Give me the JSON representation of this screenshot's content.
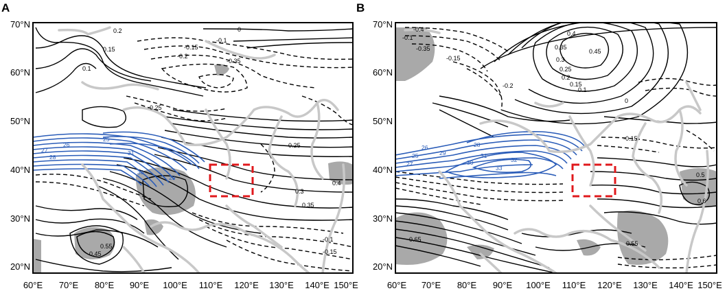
{
  "panels": [
    {
      "letter": "A",
      "lat_labels": [
        "70°N",
        "60°N",
        "50°N",
        "40°N",
        "30°N",
        "20°N"
      ],
      "lon_labels": [
        "60°E",
        "70°E",
        "80°E",
        "90°E",
        "100°E",
        "110°E",
        "120°E",
        "130°E",
        "140°E",
        "150°E"
      ],
      "contour_labels": [
        "0.2",
        "0.15",
        "0.1",
        "-0.1",
        "-0.15",
        "-0.2",
        "-0.25",
        "-0.35",
        "0",
        "0.25",
        "0.3",
        "0.35",
        "0.4",
        "0.45",
        "0.55",
        "-0.1",
        "-0.15"
      ],
      "jet_labels": [
        "25",
        "26",
        "27",
        "28",
        "29",
        "30",
        "31"
      ]
    },
    {
      "letter": "B",
      "lat_labels": [
        "70°N",
        "60°N",
        "50°N",
        "40°N",
        "30°N",
        "20°N"
      ],
      "lon_labels": [
        "60°E",
        "70°E",
        "80°E",
        "90°E",
        "100°E",
        "110°E",
        "120°E",
        "130°E",
        "140°E",
        "150°E"
      ],
      "contour_labels": [
        "0.4",
        "0.45",
        "0.35",
        "0.3",
        "0.25",
        "0.2",
        "0.15",
        "0.1",
        "0",
        "-0.1",
        "-0.15",
        "-0.2",
        "-0.35",
        "-0.4",
        "0.5",
        "0.55",
        "0.6",
        "0.65",
        "-0.15"
      ],
      "jet_labels": [
        "25",
        "26",
        "27",
        "28",
        "29",
        "30",
        "31",
        "32",
        "33"
      ]
    }
  ],
  "colors": {
    "contour": "#000000",
    "jet": "#2a5cb8",
    "coast": "#c8c8c8",
    "shade": "#a9a9a9",
    "box": "#e0191c"
  }
}
